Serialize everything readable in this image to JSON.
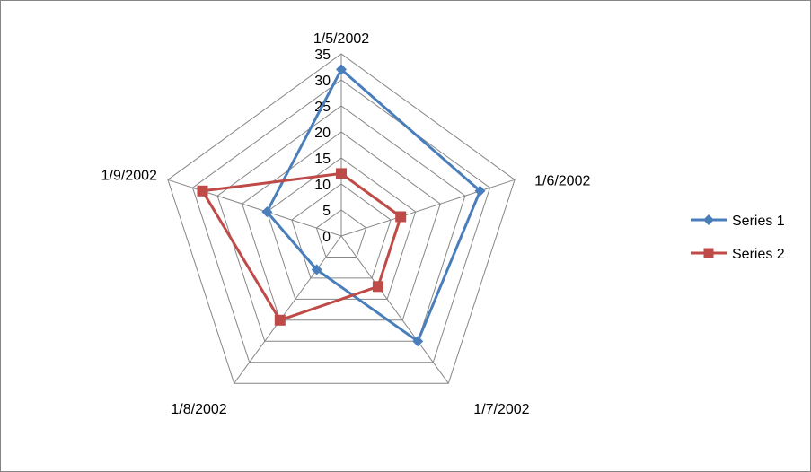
{
  "chart_data": {
    "type": "radar",
    "categories": [
      "1/5/2002",
      "1/6/2002",
      "1/7/2002",
      "1/8/2002",
      "1/9/2002"
    ],
    "series": [
      {
        "name": "Series 1",
        "values": [
          32,
          28,
          25,
          8,
          15
        ],
        "color": "#4a7ebb",
        "marker": "diamond"
      },
      {
        "name": "Series 2",
        "values": [
          12,
          12,
          12,
          20,
          28
        ],
        "color": "#be4b48",
        "marker": "square"
      }
    ],
    "rlim": [
      0,
      35
    ],
    "ticks": [
      0,
      5,
      10,
      15,
      20,
      25,
      30,
      35
    ],
    "grid": true,
    "legend": "right",
    "grid_color": "#868686"
  }
}
